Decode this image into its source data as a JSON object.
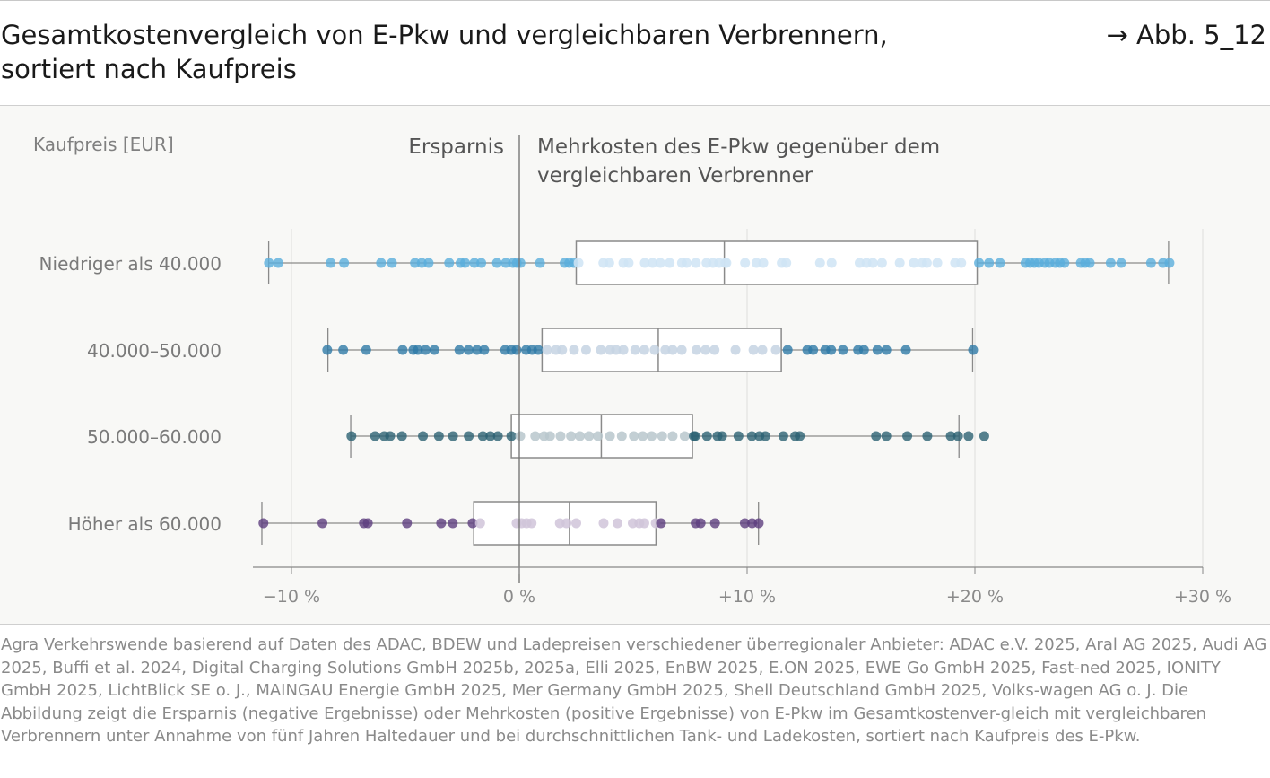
{
  "header": {
    "title_line1": "Gesamtkostenvergleich von E-Pkw und vergleichbaren Verbrennern,",
    "title_line2": "sortiert nach Kaufpreis",
    "figure_ref": "→ Abb. 5_12"
  },
  "chart_data": {
    "type": "box-strip",
    "ylabel": "Kaufpreis [EUR]",
    "left_annotation": "Ersparnis",
    "right_annotation_line1": "Mehrkosten des E-Pkw gegenüber dem",
    "right_annotation_line2": "vergleichbaren Verbrenner",
    "xlim": [
      -11.5,
      30
    ],
    "x_ticks": [
      -10,
      0,
      10,
      20,
      30
    ],
    "x_tick_labels": [
      "−10 %",
      "0 %",
      "+10 %",
      "+20 %",
      "+30 %"
    ],
    "grid": "vertical",
    "categories": [
      {
        "label": "Niedriger als 40.000",
        "color": "#5aaedc",
        "color_light": "#cfe4f5",
        "box": {
          "whisker_low": -11.0,
          "q1": 2.5,
          "median": 9.0,
          "q3": 20.1,
          "whisker_high": 28.5
        },
        "values": [
          -10.99,
          -10.58,
          -8.28,
          -7.69,
          -6.07,
          -5.59,
          -4.58,
          -4.28,
          -3.98,
          -3.08,
          -2.58,
          -2.38,
          -1.97,
          -1.67,
          -0.98,
          -0.59,
          -0.28,
          -0.11,
          0.05,
          0.91,
          1.99,
          2.19,
          2.39,
          2.6,
          3.69,
          3.95,
          4.57,
          4.8,
          5.51,
          5.85,
          6.19,
          6.6,
          7.14,
          7.34,
          7.75,
          8.22,
          8.5,
          8.77,
          9.04,
          9.09,
          9.91,
          10.41,
          10.71,
          11.52,
          11.72,
          13.2,
          13.71,
          14.94,
          15.24,
          15.52,
          15.92,
          16.7,
          17.32,
          17.69,
          17.89,
          18.35,
          19.13,
          19.4,
          20.18,
          20.62,
          21.1,
          22.22,
          22.42,
          22.61,
          22.81,
          23.07,
          23.27,
          23.53,
          23.73,
          23.93,
          24.65,
          24.84,
          25.04,
          25.96,
          26.42,
          27.73,
          28.26,
          28.54
        ]
      },
      {
        "label": "40.000–50.000",
        "color": "#2f7aa8",
        "color_light": "#c5d4e3",
        "box": {
          "whisker_low": -8.4,
          "q1": 1.0,
          "median": 6.1,
          "q3": 11.5,
          "whisker_high": 19.9
        },
        "values": [
          -8.43,
          -7.73,
          -6.72,
          -5.12,
          -4.65,
          -4.45,
          -4.12,
          -3.73,
          -2.63,
          -2.23,
          -1.86,
          -1.54,
          -0.62,
          -0.35,
          -0.12,
          0.3,
          0.56,
          0.83,
          1.22,
          1.61,
          1.88,
          2.4,
          2.93,
          3.58,
          3.98,
          4.25,
          4.57,
          5.09,
          5.49,
          5.94,
          6.41,
          6.73,
          7.13,
          7.78,
          8.18,
          8.57,
          9.49,
          10.28,
          10.67,
          11.26,
          11.78,
          12.64,
          12.9,
          13.43,
          13.69,
          14.21,
          14.87,
          15.13,
          15.72,
          16.11,
          16.97,
          19.92
        ]
      },
      {
        "label": "50.000–60.000",
        "color": "#2c6273",
        "color_light": "#b9c7cc",
        "box": {
          "whisker_low": -7.4,
          "q1": -0.35,
          "median": 3.6,
          "q3": 7.6,
          "whisker_high": 19.3
        },
        "values": [
          -7.37,
          -6.33,
          -5.93,
          -5.67,
          -5.15,
          -4.23,
          -3.53,
          -2.91,
          -2.22,
          -1.6,
          -1.27,
          -0.94,
          -0.35,
          0.04,
          0.7,
          1.09,
          1.35,
          1.81,
          2.27,
          2.66,
          3.06,
          3.45,
          3.98,
          4.5,
          5.03,
          5.42,
          5.81,
          6.27,
          6.73,
          7.26,
          7.66,
          7.72,
          8.24,
          8.7,
          8.9,
          9.62,
          10.21,
          10.54,
          10.8,
          11.59,
          12.11,
          12.31,
          15.66,
          16.11,
          17.03,
          17.91,
          18.94,
          19.26,
          19.72,
          20.41
        ]
      },
      {
        "label": "Höher als 60.000",
        "color": "#5e3f80",
        "color_light": "#d0c4d9",
        "box": {
          "whisker_low": -11.3,
          "q1": -2.0,
          "median": 2.2,
          "q3": 6.0,
          "whisker_high": 10.5
        },
        "values": [
          -11.23,
          -8.64,
          -6.82,
          -6.65,
          -4.93,
          -3.43,
          -2.92,
          -2.05,
          -1.72,
          -0.12,
          0.1,
          0.32,
          0.54,
          1.78,
          2.07,
          2.5,
          3.7,
          4.31,
          4.98,
          5.27,
          5.49,
          5.99,
          6.22,
          7.74,
          7.96,
          8.59,
          9.9,
          10.22,
          10.51
        ]
      }
    ]
  },
  "footer": {
    "source": "Agra Verkehrswende basierend auf Daten des ADAC, BDEW und Ladepreisen verschiedener überregionaler Anbieter: ADAC e.V. 2025, Aral AG 2025, Audi AG 2025, Buffi et al. 2024, Digital Charging Solutions GmbH 2025b, 2025a, Elli 2025, EnBW 2025, E.ON 2025, EWE Go GmbH 2025, Fast-ned 2025, IONITY GmbH 2025, LichtBlick SE o. J., MAINGAU Energie GmbH 2025, Mer Germany GmbH 2025, Shell Deutschland GmbH 2025, Volks-wagen AG o. J. Die Abbildung zeigt die Ersparnis (negative Ergebnisse) oder Mehrkosten (positive Ergebnisse) von E-Pkw im Gesamtkostenver-gleich mit vergleichbaren Verbrennern unter Annahme von fünf Jahren Haltedauer und bei durchschnittlichen Tank- und Ladekosten, sortiert nach Kaufpreis des E-Pkw."
  }
}
